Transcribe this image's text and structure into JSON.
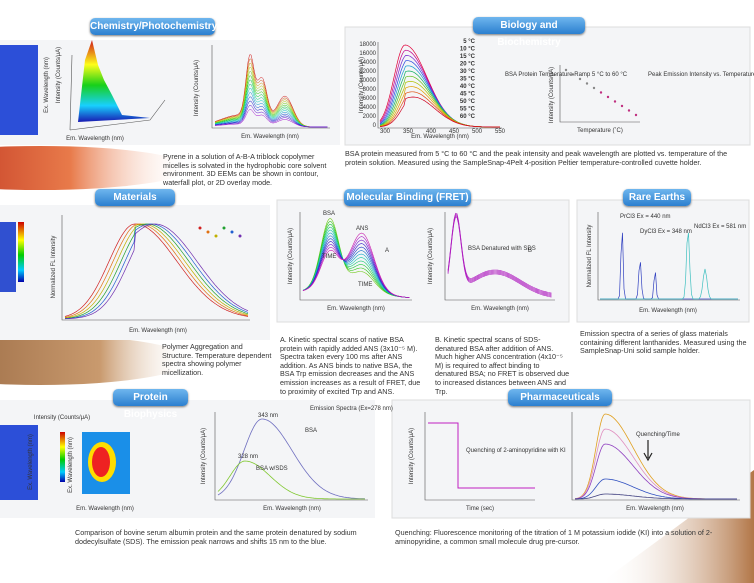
{
  "chem": {
    "title": "Chemistry/Photochemistry",
    "labels": [
      "Ex. Wavelength (nm)",
      "Intensity (Counts/μA)",
      "Em. Wavelength (nm)",
      "Intensity (Counts/μA)",
      "Em. Wavelength (nm)"
    ],
    "caption": "Pyrene in a solution of A-B-A triblock copolymer micelles is solvated in the hydrophobic core solvent environment. 3D EEMs can be shown in contour, waterfall plot, or 2D overlay mode."
  },
  "bio": {
    "title": "Biology and Biochemistry",
    "ylabel": "Intensity (Counts/μA)",
    "xlabel": "Em. Wavelength (nm)",
    "yticks": [
      "18000",
      "16000",
      "14000",
      "12000",
      "10000",
      "8000",
      "6000",
      "4000",
      "2000",
      "0"
    ],
    "xticks": [
      "300",
      "350",
      "400",
      "450",
      "500",
      "550"
    ],
    "temps": [
      "5 °C",
      "10 °C",
      "15 °C",
      "20 °C",
      "30 °C",
      "35 °C",
      "40 °C",
      "45 °C",
      "50 °C",
      "55 °C",
      "60 °C"
    ],
    "ramp": "BSA Protein Temperature Ramp 5 °C to 60 °C",
    "peak": "Peak Emission Intensity vs. Temperature",
    "ylabel2": "Intensity (Counts/μA)",
    "xlabel2": "Temperature (˚C)",
    "caption": "BSA protein measured from 5 °C to 60 °C and the peak intensity and peak wavelength are plotted vs. temperature of the protein solution. Measured using the SampleSnap-4Pelt 4-position Peltier temperature-controlled cuvette holder."
  },
  "materials": {
    "title": "Materials",
    "ylabel": "Normalized FL Intensity",
    "xlabel": "Em. Wavelength (nm)",
    "caption": "Polymer Aggregation and Structure. Temperature dependent spectra showing polymer micellization."
  },
  "fret": {
    "title": "Molecular Binding (FRET)",
    "ylabelA": "Intensity (Counts/μA)",
    "xlabelA": "Em. Wavelength (nm)",
    "bsa": "BSA",
    "ans": "ANS",
    "a": "A",
    "time1": "TIME",
    "time2": "TIME",
    "ylabelB": "Intensity (Counts/μA)",
    "xlabelB": "Em. Wavelength (nm)",
    "sds": "BSA Denatured with SDS",
    "b": "B",
    "captionA": "A. Kinetic spectral scans of native BSA protein with rapidly added ANS (3x10⁻⁵ M). Spectra taken every 100 ms after ANS addition. As ANS binds to native BSA, the BSA Trp emission decreases and the ANS emission increases as a result of FRET, due to proximity of excited Trp and ANS.",
    "captionB": "B. Kinetic spectral scans of SDS-denatured BSA after addition of ANS. Much higher ANS concentration (4x10⁻⁵ M) is required to affect binding to denatured BSA; no FRET is observed due to increased distances between ANS and Trp."
  },
  "rare": {
    "title": "Rare Earths",
    "ylabel": "Normalized FL Intensity",
    "pr": "PrCl3 Ex = 440 nm",
    "dy": "DyCl3 Ex = 348 nm",
    "nd": "NdCl3 Ex = 581 nm",
    "xlabel": "Em. Wavelength (nm)",
    "caption": "Emission spectra of a series of glass materials containing different lanthanides. Measured using the SampleSnap-Uni solid sample holder."
  },
  "prot": {
    "title": "Protein Biophysics",
    "ylabel1": "Ex. Wavelength (nm)",
    "intensity": "Intensity (Counts/μA)",
    "ylabel2": "Ex. Wavelength (nm)",
    "xlabel2": "Em. Wavelength (nm)",
    "emission": "Emission Spectra (Ex=278 nm)",
    "bsa": "BSA",
    "sds": "BSA w/SDS",
    "p1": "343 nm",
    "p2": "328 nm",
    "ylabel3": "Intensity (Counts/μA)",
    "xlabel3": "Em. Wavelength (nm)",
    "caption": "Comparison of bovine serum albumin protein and the same protein denatured by sodium dodecylsulfate (SDS). The emission peak narrows and shifts 15 nm to the blue."
  },
  "pharma": {
    "title": "Pharmaceuticals",
    "ylabel": "Intensity (Counts/μA)",
    "quench": "Quenching of 2-aminopyridine with KI",
    "xlabel": "Time (sec)",
    "qt": "Quenching/Time",
    "xlabel2": "Em. Wavelength (nm)",
    "caption": "Quenching: Fluorescence monitoring of the titration of 1 M potassium iodide (KI) into a solution of 2-aminopyridine, a common small molecule drug pre-cursor."
  }
}
